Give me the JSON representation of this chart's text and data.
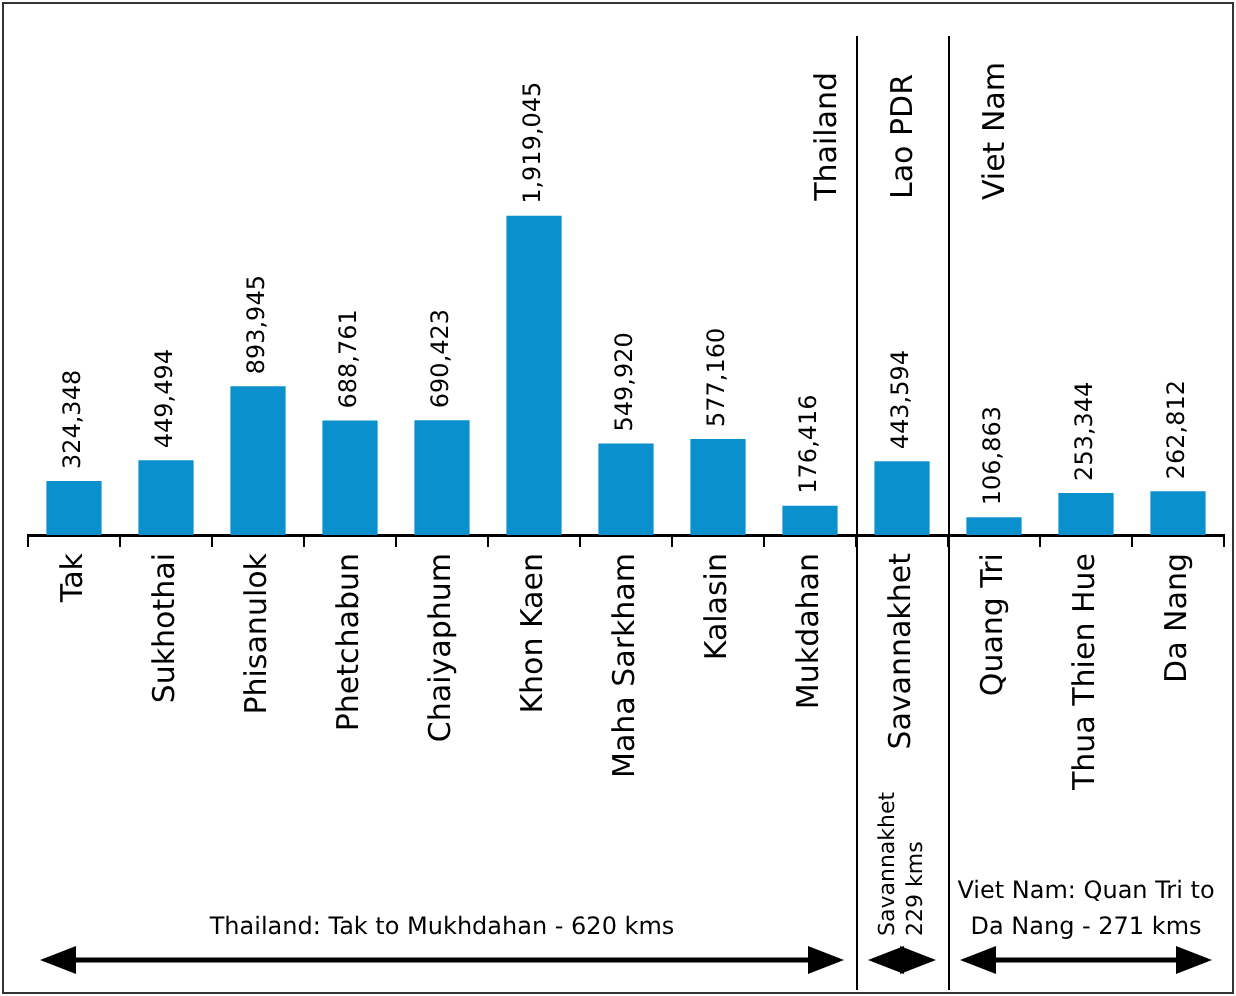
{
  "chart_data": {
    "type": "bar",
    "categories": [
      "Tak",
      "Sukhothai",
      "Phisanulok",
      "Phetchabun",
      "Chaiyaphum",
      "Khon Kaen",
      "Maha Sarkham",
      "Kalasin",
      "Mukdahan",
      "Savannakhet",
      "Quang Tri",
      "Thua Thien Hue",
      "Da Nang"
    ],
    "values": [
      324348,
      449494,
      893945,
      688761,
      690423,
      1919045,
      549920,
      577160,
      176416,
      443594,
      106863,
      253344,
      262812
    ],
    "color": "#0a90cc",
    "value_labels": [
      "324,348",
      "449,494",
      "893,945",
      "688,761",
      "690,423",
      "1,919,045",
      "549,920",
      "577,160",
      "176,416",
      "443,594",
      "106,863",
      "253,344",
      "262,812"
    ],
    "grid": false,
    "legend": false,
    "annotations": [
      "Thailand",
      "Lao PDR",
      "Viet Nam",
      "Thailand: Tak to Mukhdahan - 620 kms",
      "Savannakhet 229 kms",
      "Viet Nam: Quan Tri to Da Nang - 271 kms"
    ]
  }
}
